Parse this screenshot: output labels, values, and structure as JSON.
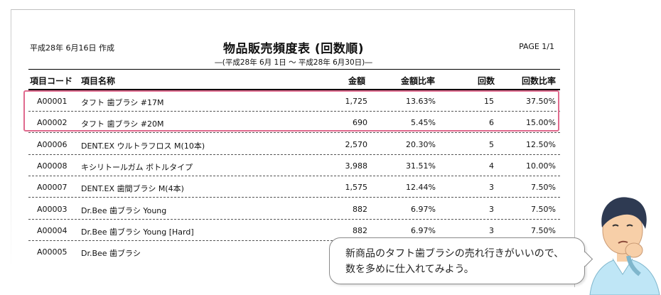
{
  "report": {
    "created": "平成28年 6月16日 作成",
    "title": "物品販売頻度表 (回数順)",
    "period": "―(平成28年 6月 1日 ～ 平成28年 6月30日)―",
    "page": "PAGE 1/1"
  },
  "columns": {
    "code": "項目コード",
    "name": "項目名称",
    "amount": "金額",
    "amount_ratio": "金額比率",
    "count": "回数",
    "count_ratio": "回数比率"
  },
  "rows": [
    {
      "code": "A00001",
      "name": "タフト 歯ブラシ #17M",
      "amount": "1,725",
      "amount_ratio": "13.63%",
      "count": "15",
      "count_ratio": "37.50%"
    },
    {
      "code": "A00002",
      "name": "タフト 歯ブラシ #20M",
      "amount": "690",
      "amount_ratio": "5.45%",
      "count": "6",
      "count_ratio": "15.00%"
    },
    {
      "code": "A00006",
      "name": "DENT.EX ウルトラフロス M(10本)",
      "amount": "2,570",
      "amount_ratio": "20.30%",
      "count": "5",
      "count_ratio": "12.50%"
    },
    {
      "code": "A00008",
      "name": "キシリトールガム ボトルタイプ",
      "amount": "3,988",
      "amount_ratio": "31.51%",
      "count": "4",
      "count_ratio": "10.00%"
    },
    {
      "code": "A00007",
      "name": "DENT.EX 歯間ブラシ M(4本)",
      "amount": "1,575",
      "amount_ratio": "12.44%",
      "count": "3",
      "count_ratio": "7.50%"
    },
    {
      "code": "A00003",
      "name": "Dr.Bee 歯ブラシ Young",
      "amount": "882",
      "amount_ratio": "6.97%",
      "count": "3",
      "count_ratio": "7.50%"
    },
    {
      "code": "A00004",
      "name": "Dr.Bee 歯ブラシ Young [Hard]",
      "amount": "882",
      "amount_ratio": "6.97%",
      "count": "3",
      "count_ratio": "7.50%"
    },
    {
      "code": "A00005",
      "name": "Dr.Bee 歯ブラシ",
      "amount": "",
      "amount_ratio": "",
      "count": "",
      "count_ratio": ""
    }
  ],
  "callout": {
    "line1": "新商品のタフト歯ブラシの売れ行きがいいので、",
    "line2": "数を多めに仕入れてみよう。"
  },
  "colors": {
    "highlight": "#e06a8e",
    "skin": "#f7cfa8",
    "hair": "#2e3a52",
    "shirt": "#bfe6f6"
  },
  "icons": {
    "character": "thinking-man-icon"
  }
}
